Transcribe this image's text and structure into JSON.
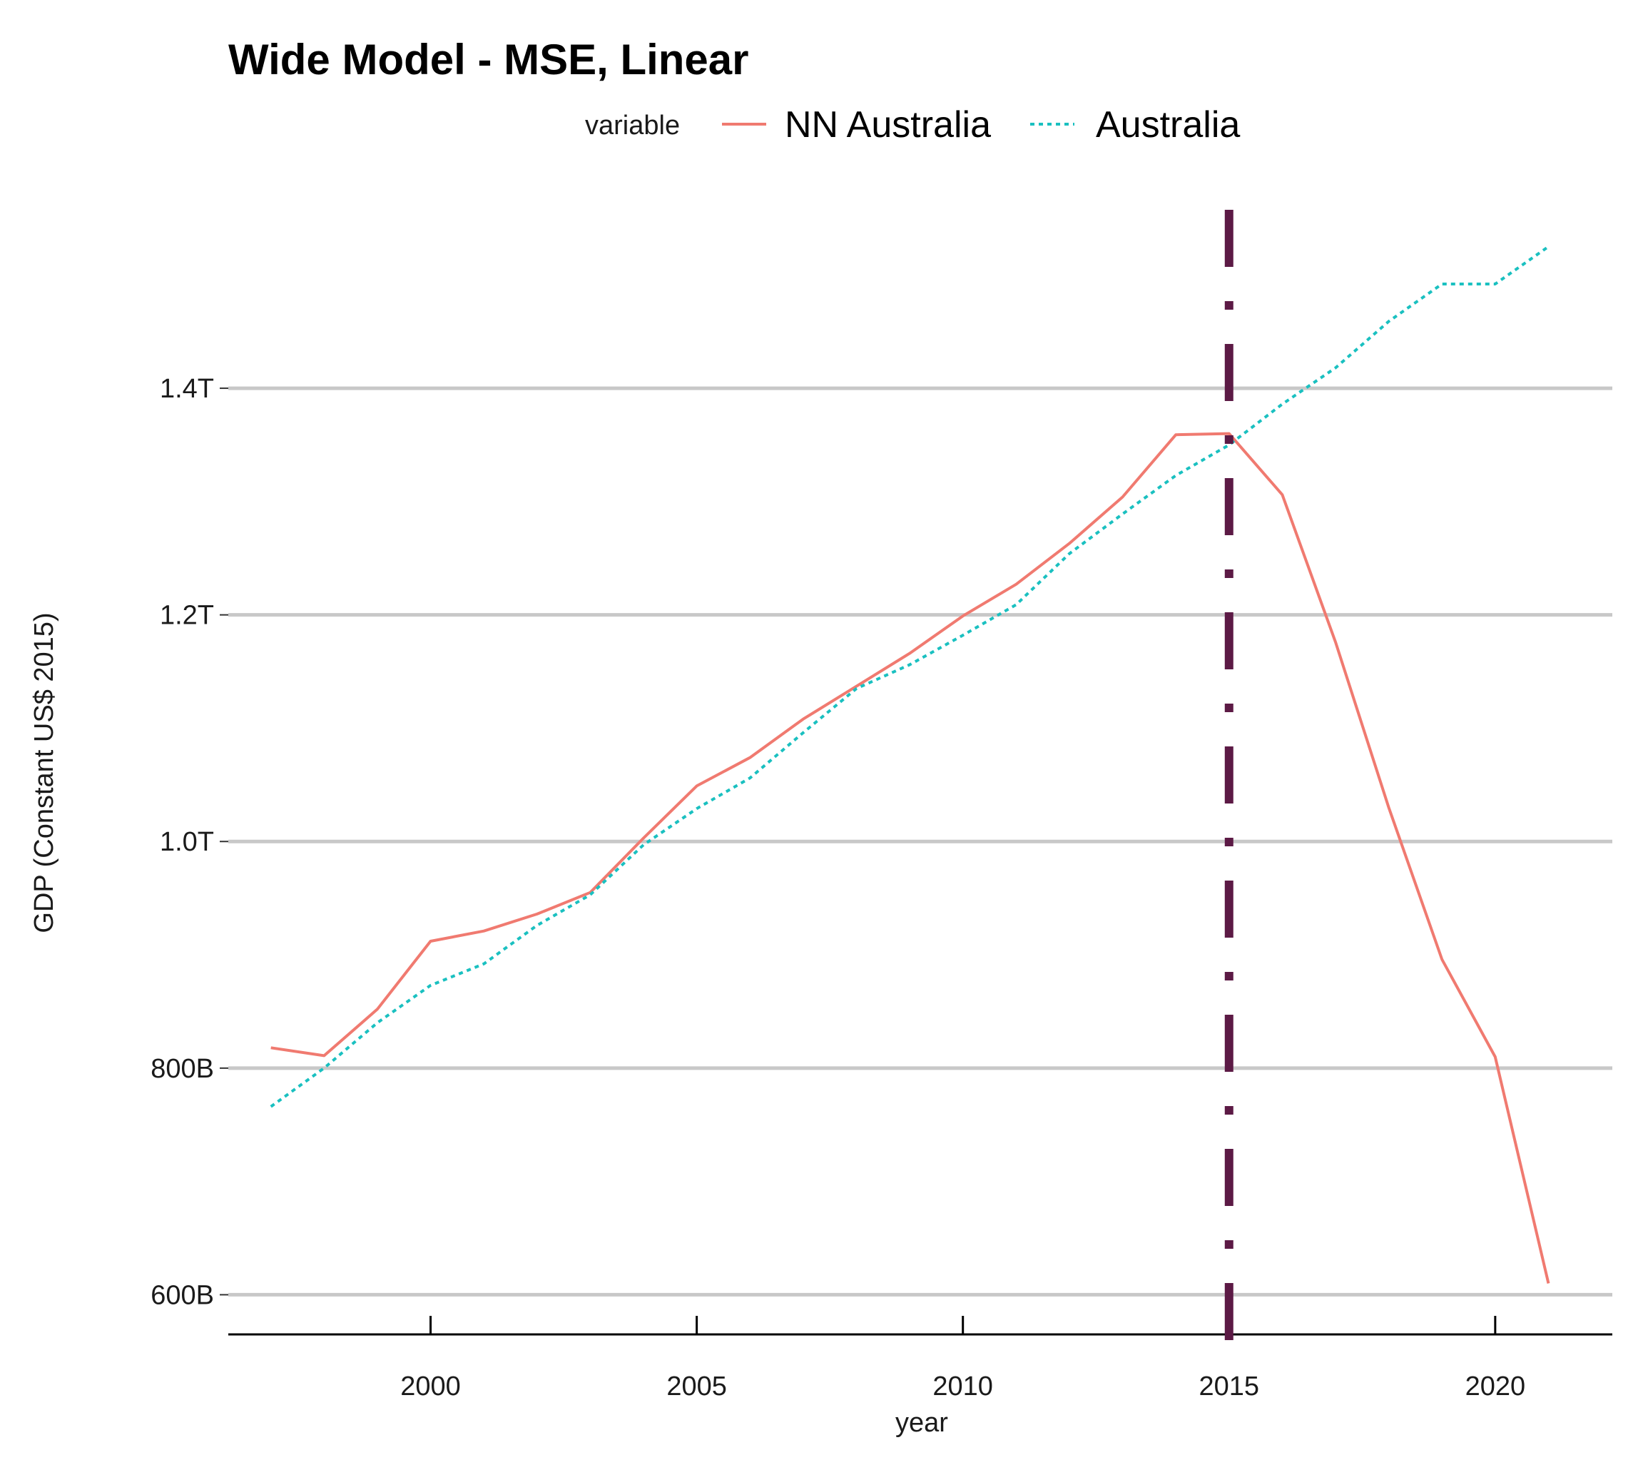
{
  "chart_data": {
    "type": "line",
    "title": "Wide Model - MSE, Linear",
    "xlabel": "year",
    "ylabel": "GDP (Constant US$ 2015)",
    "legend": {
      "title": "variable",
      "position": "top"
    },
    "xlim": [
      1996.2,
      2022.2
    ],
    "ylim": [
      565000000000,
      1560000000000
    ],
    "x_ticks": [
      2000,
      2005,
      2010,
      2015,
      2020
    ],
    "x_tick_labels": [
      "2000",
      "2005",
      "2010",
      "2015",
      "2020"
    ],
    "y_ticks": [
      600000000000,
      800000000000,
      1000000000000,
      1200000000000,
      1400000000000
    ],
    "y_tick_labels": [
      "600B",
      "800B",
      "1.0T",
      "1.2T",
      "1.4T"
    ],
    "grid": {
      "horizontal": true,
      "vertical": false
    },
    "vline": {
      "x": 2015,
      "color": "#5c1a45",
      "style": "dashdot"
    },
    "x": [
      1997,
      1998,
      1999,
      2000,
      2001,
      2002,
      2003,
      2004,
      2005,
      2006,
      2007,
      2008,
      2009,
      2010,
      2011,
      2012,
      2013,
      2014,
      2015,
      2016,
      2017,
      2018,
      2019,
      2020,
      2021
    ],
    "series": [
      {
        "name": "NN Australia",
        "color": "#f07a70",
        "style": "solid",
        "values": [
          818000000000,
          811000000000,
          852000000000,
          912000000000,
          921000000000,
          936000000000,
          955000000000,
          1003000000000,
          1049000000000,
          1074000000000,
          1108000000000,
          1137000000000,
          1166000000000,
          1199000000000,
          1227000000000,
          1263000000000,
          1304000000000,
          1359000000000,
          1360000000000,
          1306000000000,
          1176000000000,
          1030000000000,
          896000000000,
          810000000000,
          610000000000
        ]
      },
      {
        "name": "Australia",
        "color": "#1ac0c0",
        "style": "dotted",
        "values": [
          766000000000,
          800000000000,
          840000000000,
          873000000000,
          892000000000,
          926000000000,
          953000000000,
          997000000000,
          1029000000000,
          1056000000000,
          1096000000000,
          1135000000000,
          1156000000000,
          1182000000000,
          1209000000000,
          1254000000000,
          1289000000000,
          1323000000000,
          1350000000000,
          1386000000000,
          1418000000000,
          1459000000000,
          1492000000000,
          1492000000000,
          1525000000000
        ]
      }
    ]
  }
}
